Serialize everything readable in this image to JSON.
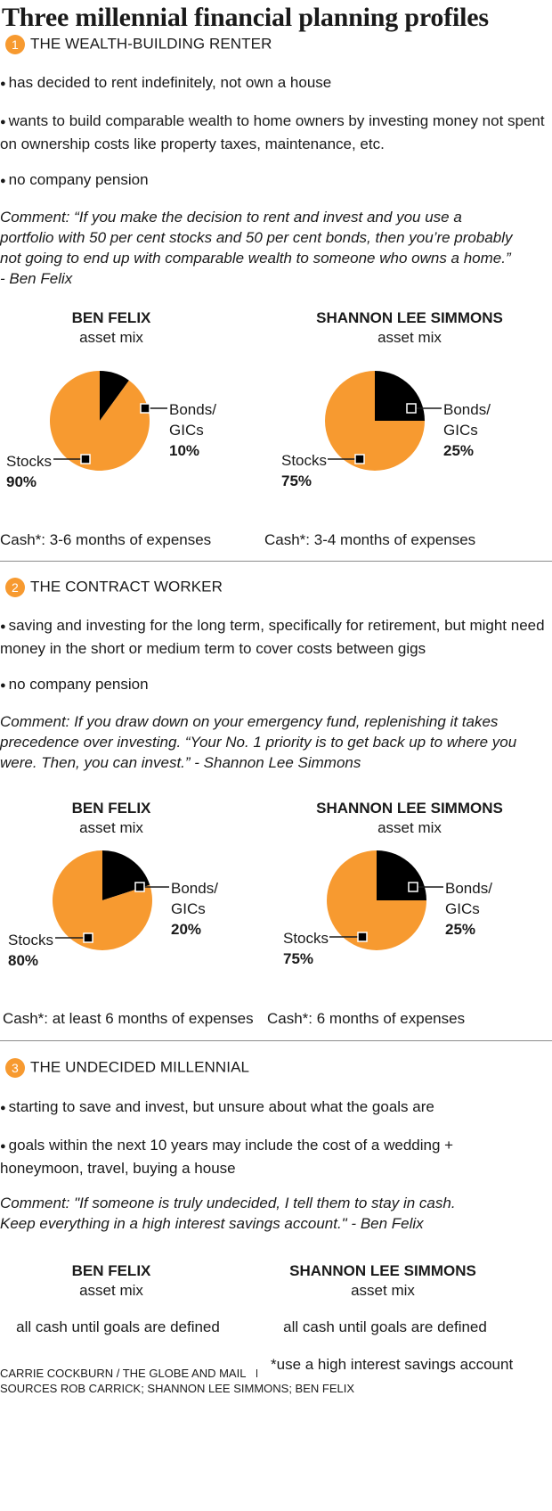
{
  "title": "Three millennial financial planning profiles",
  "colors": {
    "stocks": "#f79a30",
    "bonds": "#000000",
    "badge": "#f79a30",
    "rule": "#8c8c8c"
  },
  "sections": [
    {
      "num": "1",
      "label": "THE WEALTH-BUILDING RENTER",
      "bullets": [
        "has decided to rent indefinitely, not own a house",
        "wants to build comparable wealth to home owners by investing money not spent on ownership costs like property taxes, maintenance, etc.",
        "no company pension"
      ],
      "comment": "Comment: “If you make the decision to rent and invest and you use a portfolio with 50 per cent stocks and 50 per cent bonds, then you’re probably not going to end up with comparable wealth to someone who owns a home.” - Ben Felix",
      "advisors": [
        {
          "name": "BEN FELIX",
          "sub": "asset mix",
          "cash": "Cash*: 3-6 months of expenses"
        },
        {
          "name": "SHANNON LEE SIMMONS",
          "sub": "asset mix",
          "cash": "Cash*: 3-4 months of expenses"
        }
      ]
    },
    {
      "num": "2",
      "label": "THE CONTRACT WORKER",
      "bullets": [
        "saving and investing for the long term, specifically for retirement, but might need money in the short or medium term to cover costs between gigs",
        "no company pension"
      ],
      "comment": "Comment: If you draw down on your emergency fund, replenishing it takes precedence over investing. “Your No. 1 priority is to get back up to where you were. Then, you can invest.” - Shannon Lee Simmons",
      "advisors": [
        {
          "name": "BEN FELIX",
          "sub": "asset mix",
          "cash": "Cash*: at least 6 months of expenses"
        },
        {
          "name": "SHANNON LEE SIMMONS",
          "sub": "asset mix",
          "cash": "Cash*: 6 months of expenses"
        }
      ]
    },
    {
      "num": "3",
      "label": "THE UNDECIDED MILLENNIAL",
      "bullets": [
        "starting to save and invest, but unsure about what the goals are",
        "goals within the next 10 years may include the cost of a wedding + honeymoon, travel, buying a house"
      ],
      "comment": "Comment: \"If someone is truly undecided, I tell them to stay in cash. Keep everything in a high interest savings account.\" - Ben Felix",
      "advisors": [
        {
          "name": "BEN FELIX",
          "sub": "asset mix",
          "text": "all cash until goals are defined"
        },
        {
          "name": "SHANNON LEE SIMMONS",
          "sub": "asset mix",
          "text": "all cash until goals are defined"
        }
      ]
    }
  ],
  "chart_data": [
    {
      "type": "pie",
      "title": "BEN FELIX",
      "subtitle": "asset mix",
      "profile": "THE WEALTH-BUILDING RENTER",
      "labels": [
        "Bonds/ GICs",
        "Stocks"
      ],
      "values": [
        10,
        90
      ],
      "value_labels": [
        "10%",
        "90%"
      ],
      "colors": [
        "#000000",
        "#f79a30"
      ]
    },
    {
      "type": "pie",
      "title": "SHANNON LEE SIMMONS",
      "subtitle": "asset mix",
      "profile": "THE WEALTH-BUILDING RENTER",
      "labels": [
        "Bonds/ GICs",
        "Stocks"
      ],
      "values": [
        25,
        75
      ],
      "value_labels": [
        "25%",
        "75%"
      ],
      "colors": [
        "#000000",
        "#f79a30"
      ]
    },
    {
      "type": "pie",
      "title": "BEN FELIX",
      "subtitle": "asset mix",
      "profile": "THE CONTRACT WORKER",
      "labels": [
        "Bonds/ GICs",
        "Stocks"
      ],
      "values": [
        20,
        80
      ],
      "value_labels": [
        "20%",
        "80%"
      ],
      "colors": [
        "#000000",
        "#f79a30"
      ]
    },
    {
      "type": "pie",
      "title": "SHANNON LEE SIMMONS",
      "subtitle": "asset mix",
      "profile": "THE CONTRACT WORKER",
      "labels": [
        "Bonds/ GICs",
        "Stocks"
      ],
      "values": [
        25,
        75
      ],
      "value_labels": [
        "25%",
        "75%"
      ],
      "colors": [
        "#000000",
        "#f79a30"
      ]
    }
  ],
  "legend": {
    "bonds_line1": "Bonds/",
    "bonds_line2": "GICs",
    "stocks": "Stocks"
  },
  "footnote": "*use a high interest savings account",
  "credit": "CARRIE COCKBURN / THE GLOBE AND MAIL",
  "sources": "SOURCES ROB CARRICK; SHANNON LEE SIMMONS; BEN FELIX"
}
